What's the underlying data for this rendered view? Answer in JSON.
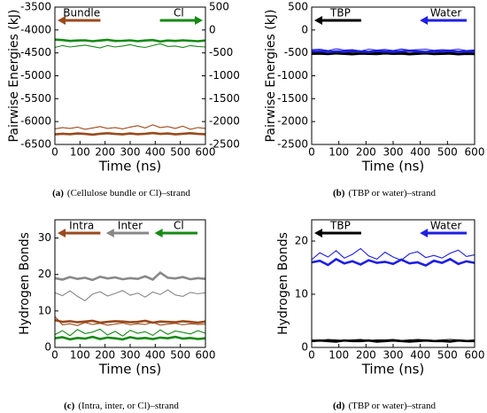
{
  "chart_data": [
    {
      "type": "line",
      "ylabel": "Pairwise Energies (kJ)",
      "xlabel": "Time (ns)",
      "caption_label": "(a)",
      "caption": "(Cellulose bundle or Cl)–strand",
      "x": [
        0,
        30,
        60,
        90,
        120,
        150,
        180,
        210,
        240,
        270,
        300,
        330,
        360,
        390,
        420,
        450,
        480,
        510,
        540,
        570,
        600
      ],
      "xlim": [
        0,
        600
      ],
      "xticks": [
        0,
        100,
        200,
        300,
        400,
        500,
        600
      ],
      "ylim": [
        -6500,
        -3500
      ],
      "yticks": [
        -6500,
        -6000,
        -5500,
        -5000,
        -4500,
        -4000,
        -3500
      ],
      "y2lim": [
        -2500,
        500
      ],
      "y2ticks": [
        -2500,
        -2000,
        -1500,
        -1000,
        -500,
        0,
        500
      ],
      "series": [
        {
          "name": "Bundle",
          "color": "#9a4a1c",
          "arrow": "left",
          "lines": [
            {
              "values": [
                -6280,
                -6265,
                -6275,
                -6260,
                -6270,
                -6285,
                -6265,
                -6255,
                -6270,
                -6280,
                -6260,
                -6275,
                -6265,
                -6250,
                -6270,
                -6260,
                -6280,
                -6265,
                -6255,
                -6270,
                -6275
              ]
            },
            {
              "values": [
                -6160,
                -6130,
                -6150,
                -6120,
                -6170,
                -6140,
                -6110,
                -6150,
                -6130,
                -6160,
                -6120,
                -6090,
                -6140,
                -6070,
                -6130,
                -6110,
                -6150,
                -6100,
                -6170,
                -6130,
                -6150
              ]
            }
          ]
        },
        {
          "name": "Cl",
          "color": "#158a15",
          "arrow": "right",
          "axis": "y2",
          "lines": [
            {
              "values": [
                -210,
                -220,
                -240,
                -230,
                -225,
                -245,
                -230,
                -215,
                -240,
                -235,
                -225,
                -245,
                -230,
                -220,
                -250,
                -230,
                -240,
                -225,
                -235,
                -245,
                -230
              ]
            },
            {
              "values": [
                -380,
                -340,
                -370,
                -350,
                -330,
                -360,
                -390,
                -340,
                -370,
                -350,
                -320,
                -360,
                -380,
                -340,
                -300,
                -360,
                -350,
                -380,
                -340,
                -360,
                -370
              ]
            }
          ]
        }
      ]
    },
    {
      "type": "line",
      "ylabel": "Pairwise Energies (kJ)",
      "xlabel": "Time (ns)",
      "caption_label": "(b)",
      "caption": "(TBP or water)–strand",
      "x": [
        0,
        30,
        60,
        90,
        120,
        150,
        180,
        210,
        240,
        270,
        300,
        330,
        360,
        390,
        420,
        450,
        480,
        510,
        540,
        570,
        600
      ],
      "xlim": [
        0,
        600
      ],
      "xticks": [
        0,
        100,
        200,
        300,
        400,
        500,
        600
      ],
      "ylim": [
        -2500,
        500
      ],
      "yticks": [
        -2500,
        -2000,
        -1500,
        -1000,
        -500,
        0,
        500
      ],
      "series": [
        {
          "name": "TBP",
          "color": "#000000",
          "arrow": "left",
          "lines": [
            {
              "values": [
                -520,
                -515,
                -525,
                -510,
                -520,
                -530,
                -515,
                -520,
                -525,
                -510,
                -520,
                -515,
                -530,
                -520,
                -510,
                -525,
                -520,
                -515,
                -530,
                -520,
                -525
              ]
            },
            {
              "values": [
                -490,
                -500,
                -485,
                -495,
                -505,
                -490,
                -480,
                -500,
                -495,
                -485,
                -500,
                -490,
                -505,
                -495,
                -480,
                -490,
                -500,
                -495,
                -485,
                -500,
                -490
              ]
            }
          ]
        },
        {
          "name": "Water",
          "color": "#1f1fe0",
          "arrow": "left",
          "lines": [
            {
              "values": [
                -470,
                -460,
                -480,
                -465,
                -475,
                -455,
                -470,
                -480,
                -460,
                -470,
                -475,
                -465,
                -455,
                -470,
                -480,
                -465,
                -470,
                -460,
                -475,
                -470,
                -465
              ]
            },
            {
              "values": [
                -430,
                -420,
                -450,
                -410,
                -440,
                -430,
                -460,
                -420,
                -440,
                -425,
                -450,
                -415,
                -440,
                -430,
                -420,
                -445,
                -430,
                -440,
                -420,
                -450,
                -435
              ]
            }
          ]
        }
      ]
    },
    {
      "type": "line",
      "ylabel": "Hydrogen Bonds",
      "xlabel": "Time (ns)",
      "caption_label": "(c)",
      "caption": "(Intra, inter, or Cl)–strand",
      "x": [
        0,
        30,
        60,
        90,
        120,
        150,
        180,
        210,
        240,
        270,
        300,
        330,
        360,
        390,
        420,
        450,
        480,
        510,
        540,
        570,
        600
      ],
      "xlim": [
        0,
        600
      ],
      "xticks": [
        0,
        100,
        200,
        300,
        400,
        500,
        600
      ],
      "ylim": [
        0,
        35
      ],
      "yticks": [
        0,
        10,
        20,
        30
      ],
      "series": [
        {
          "name": "Intra",
          "color": "#9a4a1c",
          "arrow": "left",
          "lines": [
            {
              "values": [
                7.5,
                7.0,
                7.2,
                6.9,
                7.1,
                7.3,
                6.8,
                7.0,
                7.2,
                7.1,
                6.9,
                7.0,
                7.3,
                6.8,
                7.1,
                7.0,
                6.9,
                7.2,
                7.0,
                6.8,
                7.1
              ]
            },
            {
              "values": [
                8.5,
                6.2,
                6.5,
                6.0,
                6.8,
                6.3,
                6.6,
                6.1,
                6.4,
                6.7,
                6.2,
                6.5,
                6.3,
                6.9,
                6.1,
                6.4,
                6.6,
                6.2,
                6.5,
                6.3,
                6.4
              ]
            }
          ]
        },
        {
          "name": "Inter",
          "color": "#888888",
          "arrow": "left",
          "lines": [
            {
              "values": [
                19.0,
                18.6,
                19.3,
                18.8,
                19.1,
                18.5,
                19.4,
                18.9,
                19.2,
                18.7,
                19.0,
                18.8,
                19.5,
                18.6,
                20.5,
                19.1,
                18.9,
                19.3,
                18.7,
                19.0,
                18.8
              ]
            },
            {
              "values": [
                15.0,
                14.2,
                15.5,
                14.0,
                12.8,
                14.6,
                15.3,
                14.1,
                14.8,
                15.6,
                14.3,
                14.9,
                13.8,
                15.2,
                14.5,
                15.8,
                14.4,
                14.0,
                15.1,
                14.7,
                15.0
              ]
            }
          ]
        },
        {
          "name": "Cl",
          "color": "#158a15",
          "arrow": "left",
          "lines": [
            {
              "values": [
                2.5,
                2.8,
                2.2,
                2.6,
                2.4,
                2.9,
                2.3,
                2.7,
                2.5,
                2.2,
                2.8,
                2.4,
                2.6,
                2.3,
                2.7,
                2.5,
                2.9,
                2.4,
                2.6,
                2.3,
                2.5
              ]
            },
            {
              "values": [
                3.5,
                4.6,
                3.2,
                4.9,
                3.8,
                4.2,
                5.0,
                3.4,
                4.4,
                3.1,
                4.7,
                3.9,
                4.3,
                3.3,
                4.8,
                3.6,
                4.5,
                4.1,
                3.7,
                4.6,
                3.9
              ]
            }
          ]
        }
      ]
    },
    {
      "type": "line",
      "ylabel": "Hydrogen Bonds",
      "xlabel": "Time (ns)",
      "caption_label": "(d)",
      "caption": "(TBP or water)–strand",
      "x": [
        0,
        30,
        60,
        90,
        120,
        150,
        180,
        210,
        240,
        270,
        300,
        330,
        360,
        390,
        420,
        450,
        480,
        510,
        540,
        570,
        600
      ],
      "xlim": [
        0,
        600
      ],
      "xticks": [
        0,
        100,
        200,
        300,
        400,
        500,
        600
      ],
      "ylim": [
        0,
        24
      ],
      "yticks": [
        0,
        10,
        20
      ],
      "series": [
        {
          "name": "TBP",
          "color": "#000000",
          "arrow": "left",
          "lines": [
            {
              "values": [
                1.2,
                1.3,
                1.2,
                1.1,
                1.3,
                1.2,
                1.2,
                1.3,
                1.1,
                1.2,
                1.3,
                1.2,
                1.1,
                1.2,
                1.3,
                1.2,
                1.2,
                1.1,
                1.3,
                1.2,
                1.2
              ]
            },
            {
              "values": [
                1.4,
                1.3,
                1.5,
                1.4,
                1.3,
                1.4,
                1.5,
                1.3,
                1.4,
                1.4,
                1.5,
                1.3,
                1.4,
                1.5,
                1.4,
                1.3,
                1.4,
                1.5,
                1.4,
                1.3,
                1.4
              ]
            }
          ]
        },
        {
          "name": "Water",
          "color": "#1f1fe0",
          "arrow": "left",
          "lines": [
            {
              "values": [
                16.0,
                16.3,
                15.5,
                16.6,
                15.8,
                16.2,
                15.6,
                16.4,
                15.9,
                16.1,
                15.7,
                16.5,
                15.8,
                16.0,
                15.4,
                16.3,
                15.9,
                16.6,
                15.7,
                16.2,
                15.9
              ]
            },
            {
              "values": [
                16.5,
                17.8,
                17.0,
                18.2,
                16.8,
                17.5,
                18.6,
                17.2,
                16.6,
                17.9,
                17.0,
                16.4,
                17.6,
                18.0,
                16.9,
                17.3,
                16.8,
                17.7,
                18.3,
                17.1,
                17.4
              ]
            }
          ]
        }
      ]
    }
  ]
}
